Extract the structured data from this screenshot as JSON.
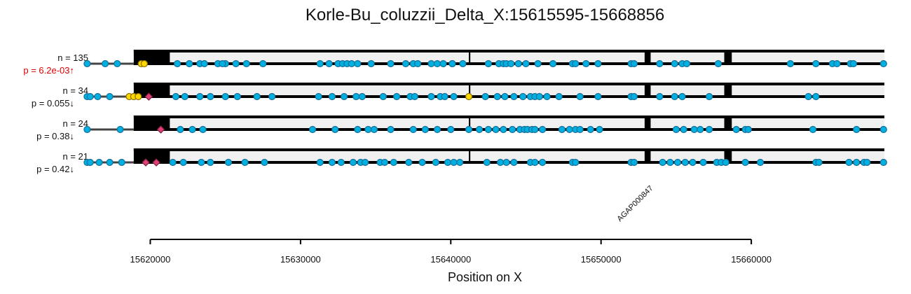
{
  "chart_data": {
    "type": "scatter",
    "title": "Korle-Bu_coluzzii_Delta_X:15615595-15668856",
    "xlabel": "Position on X",
    "xlim": [
      15615595,
      15668856
    ],
    "xticks": [
      "15620000",
      "15630000",
      "15640000",
      "15650000",
      "15660000"
    ],
    "xtick_values": [
      15620000,
      15630000,
      15640000,
      15650000,
      15660000
    ],
    "gene_label": "AGAP000847",
    "gene_start": 15618900,
    "gene_end": 15668856,
    "exons": [
      [
        15618900,
        15621300
      ],
      [
        15641200,
        15641300
      ],
      [
        15652900,
        15653300
      ],
      [
        15658200,
        15658700
      ]
    ],
    "colors": {
      "snp": "#00b0e0",
      "snp_edge": "#1a6f9a",
      "yellow": "#ffd700",
      "pink": "#e0407a",
      "red": "#dd0000",
      "exon": "#000000",
      "intron_fill": "#f0f0f0"
    },
    "tracks": [
      {
        "n_label": "n = 135",
        "p_label": "p = 6.2e-03↑",
        "p_color": "#dd0000",
        "snps": [
          15615800,
          15617000,
          15617800,
          15634700,
          15625700,
          15626400,
          15627500,
          15625000,
          15621800,
          15622600,
          15623300,
          15623600,
          15624500,
          15624800,
          15631300,
          15631900,
          15632500,
          15632800,
          15633100,
          15633400,
          15633800,
          15636000,
          15637000,
          15637500,
          15637800,
          15638700,
          15639100,
          15639500,
          15640100,
          15640100,
          15640800,
          15642500,
          15643200,
          15643500,
          15643700,
          15644000,
          15644500,
          15645000,
          15645800,
          15646800,
          15648100,
          15648300,
          15649000,
          15649800,
          15652000,
          15652200,
          15653900,
          15654900,
          15655400,
          15655700,
          15657800,
          15662600,
          15664300,
          15665400,
          15665700,
          15666600,
          15666800,
          15668800
        ],
        "yellow": [
          15619400,
          15619600
        ],
        "pink": []
      },
      {
        "n_label": "n = 34",
        "p_label": "p = 0.055↓",
        "p_color": "#111111",
        "snps": [
          15615800,
          15616000,
          15616500,
          15617300,
          15621700,
          15622300,
          15623300,
          15624000,
          15625000,
          15625800,
          15627100,
          15628100,
          15631200,
          15632100,
          15632900,
          15633700,
          15634100,
          15635500,
          15636400,
          15637300,
          15637600,
          15638700,
          15639300,
          15639600,
          15640200,
          15642300,
          15643100,
          15643600,
          15644200,
          15644800,
          15645300,
          15645600,
          15645900,
          15646400,
          15647200,
          15648600,
          15649800,
          15652000,
          15652200,
          15653900,
          15654900,
          15655400,
          15657200,
          15663800,
          15664300
        ],
        "yellow": [
          15618600,
          15618900,
          15619200,
          15641200
        ],
        "pink": [
          15619900
        ]
      },
      {
        "n_label": "n = 24",
        "p_label": "p = 0.38↓",
        "p_color": "#111111",
        "snps": [
          15615800,
          15618000,
          15622000,
          15622800,
          15623500,
          15630800,
          15632300,
          15633800,
          15634500,
          15634900,
          15636000,
          15637500,
          15638300,
          15639100,
          15640000,
          15641200,
          15641900,
          15642500,
          15643000,
          15643500,
          15644100,
          15644600,
          15644900,
          15645100,
          15645400,
          15645600,
          15646100,
          15647400,
          15647900,
          15648300,
          15648600,
          15649300,
          15649900,
          15655000,
          15655500,
          15656200,
          15656600,
          15657200,
          15659000,
          15659600,
          15659800,
          15664100,
          15667000,
          15668800
        ],
        "yellow": [],
        "pink": [
          15620700
        ]
      },
      {
        "n_label": "n = 21",
        "p_label": "p = 0.42↓",
        "p_color": "#111111",
        "snps": [
          15615800,
          15616000,
          15616600,
          15617300,
          15618100,
          15621500,
          15622200,
          15623400,
          15624000,
          15625200,
          15626300,
          15627600,
          15631300,
          15632100,
          15632700,
          15633500,
          15634000,
          15634300,
          15635300,
          15635600,
          15636200,
          15637200,
          15638100,
          15639000,
          15639800,
          15640200,
          15640600,
          15642400,
          15643300,
          15643700,
          15644200,
          15645300,
          15645600,
          15646100,
          15648100,
          15648300,
          15652000,
          15652200,
          15654100,
          15654600,
          15655100,
          15655600,
          15656100,
          15656800,
          15657700,
          15658000,
          15658300,
          15659600,
          15660600,
          15664300,
          15664500,
          15666500,
          15667000,
          15667500,
          15667700,
          15668800
        ],
        "yellow": [],
        "pink": [
          15619700,
          15620400
        ]
      }
    ]
  }
}
